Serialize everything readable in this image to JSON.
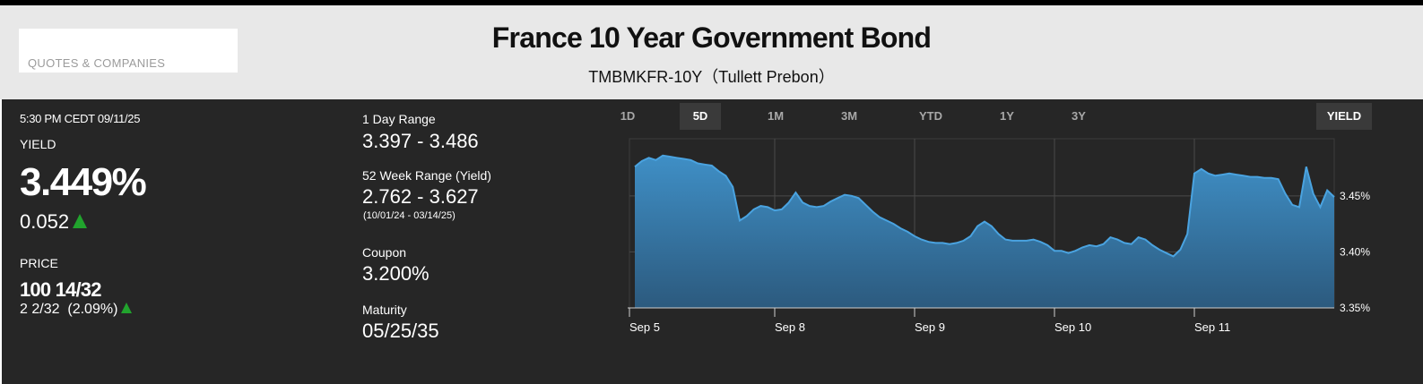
{
  "header": {
    "search_label": "QUOTES & COMPANIES",
    "title": "France 10 Year Government Bond",
    "subtitle": "TMBMKFR-10Y（Tullett Prebon）"
  },
  "quote": {
    "timestamp": "5:30 PM CEDT 09/11/25",
    "yield_label": "YIELD",
    "yield_value": "3.449%",
    "yield_change": "0.052",
    "price_label": "PRICE",
    "price_value": "100 14/32",
    "price_change": "2 2/32  (2.09%)"
  },
  "stats": {
    "day_range_label": "1 Day Range",
    "day_range_value": "3.397 - 3.486",
    "week52_label": "52 Week Range (Yield)",
    "week52_value": "2.762 - 3.627",
    "week52_dates": "(10/01/24 - 03/14/25)",
    "coupon_label": "Coupon",
    "coupon_value": "3.200%",
    "maturity_label": "Maturity",
    "maturity_value": "05/25/35"
  },
  "tabs": [
    {
      "label": "1D",
      "active": false
    },
    {
      "label": "5D",
      "active": true
    },
    {
      "label": "1M",
      "active": false
    },
    {
      "label": "3M",
      "active": false
    },
    {
      "label": "YTD",
      "active": false
    },
    {
      "label": "1Y",
      "active": false
    },
    {
      "label": "3Y",
      "active": false
    }
  ],
  "yield_button": "YIELD",
  "colors": {
    "header_bg": "#e8e8e8",
    "panel_bg": "#262626",
    "up_green": "#21a32d",
    "line_blue": "#4aa3e0"
  },
  "chart_data": {
    "type": "area",
    "series": [
      {
        "values": [
          3.476,
          3.481,
          3.484,
          3.482,
          3.486,
          3.485,
          3.484,
          3.483,
          3.482,
          3.479,
          3.478,
          3.477,
          3.472,
          3.468,
          3.458,
          3.428,
          3.432,
          3.438,
          3.441,
          3.44,
          3.437,
          3.438,
          3.444,
          3.453,
          3.444,
          3.441,
          3.44,
          3.441,
          3.445,
          3.448,
          3.451,
          3.45,
          3.448,
          3.442,
          3.436,
          3.431,
          3.428,
          3.425,
          3.421,
          3.418,
          3.414,
          3.411,
          3.409,
          3.408,
          3.408,
          3.407,
          3.408,
          3.41,
          3.414,
          3.423,
          3.427,
          3.423,
          3.416,
          3.411,
          3.41,
          3.41,
          3.41,
          3.411,
          3.409,
          3.406,
          3.401,
          3.401,
          3.399,
          3.401,
          3.404,
          3.406,
          3.405,
          3.407,
          3.413,
          3.411,
          3.408,
          3.407,
          3.413,
          3.411,
          3.406,
          3.402,
          3.399,
          3.396,
          3.402,
          3.416,
          3.47,
          3.474,
          3.47,
          3.468,
          3.469,
          3.47,
          3.469,
          3.468,
          3.467,
          3.467,
          3.466,
          3.466,
          3.465,
          3.452,
          3.442,
          3.44,
          3.476,
          3.452,
          3.44,
          3.455,
          3.449
        ]
      }
    ],
    "x_tick_labels": [
      "Sep 5",
      "Sep 8",
      "Sep 9",
      "Sep 10",
      "Sep 11"
    ],
    "x_tick_positions": [
      0,
      20,
      40,
      60,
      80
    ],
    "y_tick_labels": [
      "3.45%",
      "3.40%",
      "3.35%"
    ],
    "y_ticks": [
      3.45,
      3.4,
      3.35
    ],
    "ylim": [
      3.35,
      3.501
    ],
    "grid": true
  }
}
